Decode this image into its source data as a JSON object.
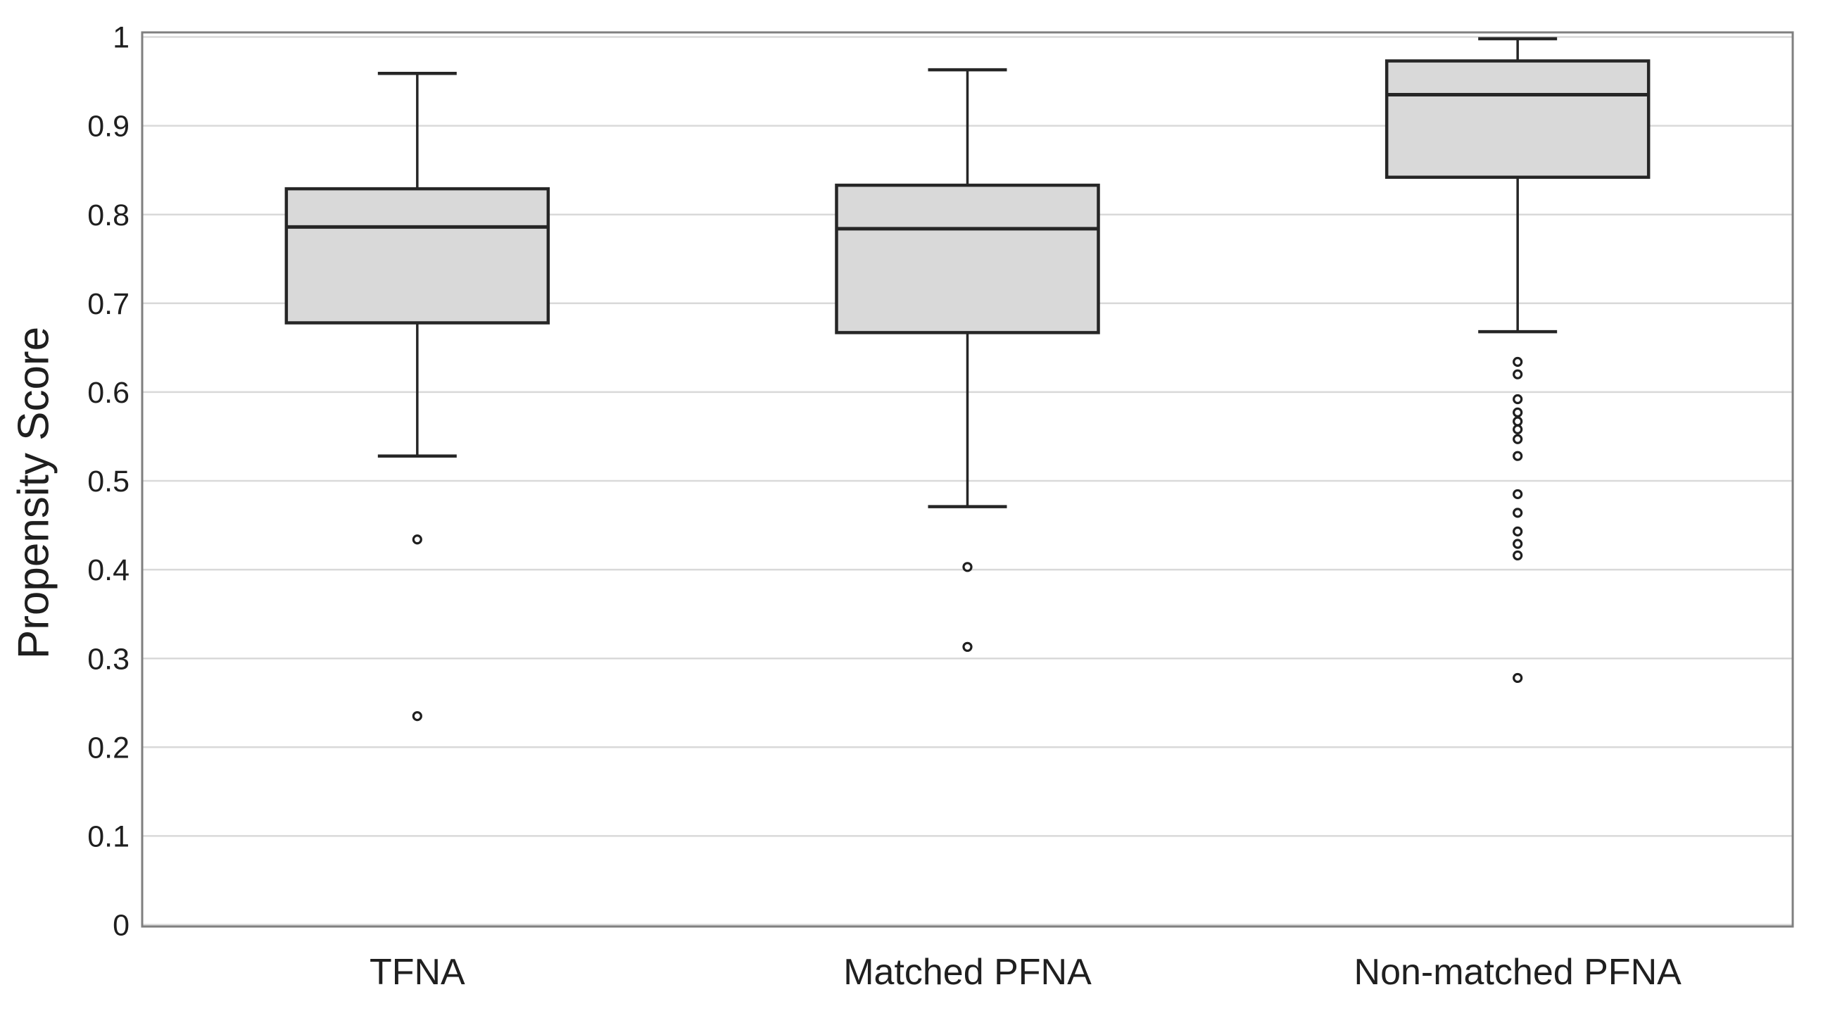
{
  "chart_data": {
    "type": "boxplot",
    "title": "",
    "xlabel": "",
    "ylabel": "Propensity Score",
    "ylim": [
      0,
      1
    ],
    "grid": "horizontal",
    "legend_position": "none",
    "yticks": [
      {
        "value": 0,
        "label": "0"
      },
      {
        "value": 0.1,
        "label": "0.1"
      },
      {
        "value": 0.2,
        "label": "0.2"
      },
      {
        "value": 0.3,
        "label": "0.3"
      },
      {
        "value": 0.4,
        "label": "0.4"
      },
      {
        "value": 0.5,
        "label": "0.5"
      },
      {
        "value": 0.6,
        "label": "0.6"
      },
      {
        "value": 0.7,
        "label": "0.7"
      },
      {
        "value": 0.8,
        "label": "0.8"
      },
      {
        "value": 0.9,
        "label": "0.9"
      },
      {
        "value": 1,
        "label": "1"
      }
    ],
    "categories": [
      "TFNA",
      "Matched PFNA",
      "Non-matched PFNA"
    ],
    "series": [
      {
        "name": "TFNA",
        "whisker_low": 0.528,
        "q1": 0.678,
        "median": 0.786,
        "q3": 0.829,
        "whisker_high": 0.959,
        "outliers": [
          0.434,
          0.235
        ]
      },
      {
        "name": "Matched PFNA",
        "whisker_low": 0.471,
        "q1": 0.667,
        "median": 0.784,
        "q3": 0.833,
        "whisker_high": 0.963,
        "outliers": [
          0.403,
          0.313
        ]
      },
      {
        "name": "Non-matched PFNA",
        "whisker_low": 0.668,
        "q1": 0.842,
        "median": 0.935,
        "q3": 0.973,
        "whisker_high": 0.998,
        "outliers": [
          0.634,
          0.62,
          0.592,
          0.577,
          0.567,
          0.558,
          0.547,
          0.528,
          0.485,
          0.464,
          0.443,
          0.429,
          0.416,
          0.278
        ]
      }
    ],
    "colors": {
      "background": "#ffffff",
      "box_fill": "#d9d9d9",
      "box_stroke": "#262626",
      "whisker_stroke": "#262626",
      "outlier_stroke": "#1f1f1f",
      "outlier_fill": "#ffffff",
      "gridline": "#d9d9d9",
      "plot_border": "#7f7f7f",
      "text": "#1f1f1f"
    }
  }
}
